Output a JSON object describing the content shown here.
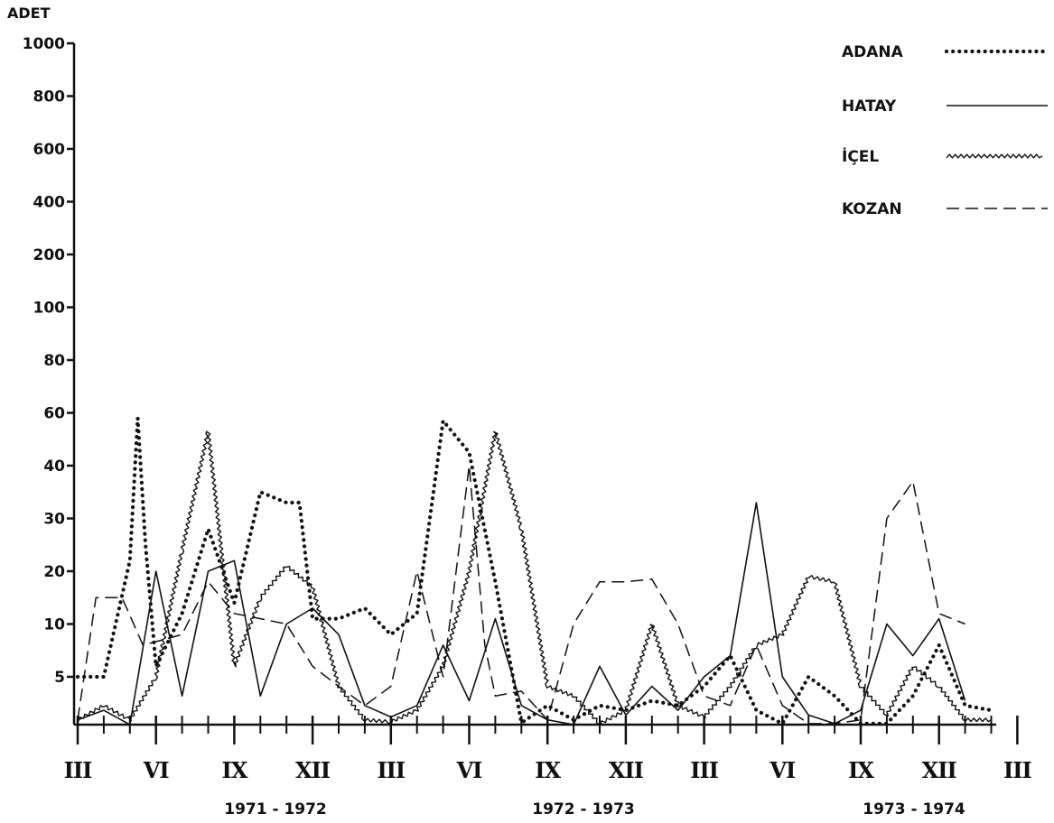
{
  "chart_data": {
    "type": "line",
    "ylabel": "ADET",
    "y_ticks": [
      "1000",
      "800",
      "600",
      "400",
      "200",
      "100",
      "80",
      "60",
      "40",
      "30",
      "20",
      "10",
      "5"
    ],
    "month_labels": [
      "III",
      "VI",
      "IX",
      "XII",
      "III",
      "VI",
      "IX",
      "XII",
      "III",
      "VI",
      "IX",
      "XII",
      "III"
    ],
    "periods": [
      "1971 - 1972",
      "1972 - 1973",
      "1973 - 1974"
    ],
    "x_range_months": [
      0,
      36
    ],
    "series": [
      {
        "name": "ADANA",
        "style": "dotted",
        "points": [
          [
            0,
            5
          ],
          [
            1,
            5
          ],
          [
            2,
            22
          ],
          [
            2.3,
            58
          ],
          [
            2.6,
            25
          ],
          [
            3,
            6
          ],
          [
            4,
            12
          ],
          [
            5,
            28
          ],
          [
            6,
            14
          ],
          [
            7,
            35
          ],
          [
            8,
            33
          ],
          [
            8.5,
            33
          ],
          [
            9,
            11
          ],
          [
            10,
            11
          ],
          [
            11,
            13
          ],
          [
            12,
            9
          ],
          [
            13,
            12
          ],
          [
            14,
            57
          ],
          [
            15,
            45
          ],
          [
            16,
            18
          ],
          [
            17,
            0.2
          ],
          [
            18,
            2
          ],
          [
            19,
            0.5
          ],
          [
            20,
            2
          ],
          [
            21,
            1.5
          ],
          [
            22,
            2.5
          ],
          [
            23,
            2
          ],
          [
            24,
            4
          ],
          [
            25,
            7
          ],
          [
            26,
            1.5
          ],
          [
            27,
            0.1
          ],
          [
            28,
            5
          ],
          [
            29,
            3
          ],
          [
            30,
            0.1
          ],
          [
            31,
            0.1
          ],
          [
            32,
            3
          ],
          [
            33,
            8
          ],
          [
            34,
            2
          ],
          [
            35,
            1.5
          ]
        ]
      },
      {
        "name": "HATAY",
        "style": "solid",
        "points": [
          [
            0,
            0.5
          ],
          [
            1,
            1.5
          ],
          [
            2,
            0
          ],
          [
            3,
            20
          ],
          [
            4,
            3
          ],
          [
            5,
            20
          ],
          [
            6,
            22
          ],
          [
            7,
            3
          ],
          [
            8,
            10
          ],
          [
            9,
            13
          ],
          [
            10,
            9
          ],
          [
            11,
            2
          ],
          [
            12,
            0.8
          ],
          [
            13,
            2
          ],
          [
            14,
            8
          ],
          [
            15,
            2.5
          ],
          [
            16,
            11
          ],
          [
            17,
            2
          ],
          [
            18,
            0.5
          ],
          [
            19,
            0
          ],
          [
            20,
            6
          ],
          [
            21,
            1
          ],
          [
            22,
            4
          ],
          [
            23,
            1.5
          ],
          [
            24,
            5
          ],
          [
            25,
            7
          ],
          [
            26,
            33
          ],
          [
            27,
            5
          ],
          [
            28,
            1
          ],
          [
            29,
            0.1
          ],
          [
            30,
            1.5
          ],
          [
            31,
            10
          ],
          [
            32,
            7
          ],
          [
            33,
            11
          ],
          [
            34,
            2.5
          ]
        ]
      },
      {
        "name": "İÇEL",
        "style": "wavy",
        "points": [
          [
            0,
            0.5
          ],
          [
            1,
            2
          ],
          [
            2,
            0.5
          ],
          [
            3,
            5
          ],
          [
            4,
            24
          ],
          [
            5,
            53
          ],
          [
            6,
            6
          ],
          [
            7,
            15
          ],
          [
            8,
            21
          ],
          [
            9,
            17
          ],
          [
            10,
            4
          ],
          [
            11,
            0.5
          ],
          [
            12,
            0.3
          ],
          [
            13,
            1.5
          ],
          [
            14,
            6
          ],
          [
            15,
            20
          ],
          [
            16,
            53
          ],
          [
            17,
            28
          ],
          [
            18,
            4
          ],
          [
            19,
            3
          ],
          [
            20,
            0.1
          ],
          [
            21,
            1.5
          ],
          [
            22,
            10
          ],
          [
            23,
            2
          ],
          [
            24,
            0.8
          ],
          [
            25,
            4
          ],
          [
            26,
            8
          ],
          [
            27,
            9
          ],
          [
            28,
            19
          ],
          [
            29,
            18
          ],
          [
            30,
            4
          ],
          [
            31,
            1
          ],
          [
            32,
            6
          ],
          [
            33,
            4
          ],
          [
            34,
            0.5
          ],
          [
            35,
            0.5
          ]
        ]
      },
      {
        "name": "KOZAN",
        "style": "dashed",
        "points": [
          [
            0,
            0.5
          ],
          [
            0.7,
            15
          ],
          [
            1.7,
            15
          ],
          [
            2.5,
            8
          ],
          [
            4,
            9
          ],
          [
            5,
            18
          ],
          [
            6,
            12
          ],
          [
            7,
            11
          ],
          [
            8,
            10
          ],
          [
            9,
            6
          ],
          [
            10,
            4
          ],
          [
            11,
            2
          ],
          [
            12,
            4
          ],
          [
            13,
            20
          ],
          [
            14,
            5
          ],
          [
            15,
            40
          ],
          [
            15.6,
            8
          ],
          [
            16,
            3
          ],
          [
            17,
            3.5
          ],
          [
            18,
            0.5
          ],
          [
            19,
            10
          ],
          [
            20,
            18
          ],
          [
            21,
            18
          ],
          [
            22,
            18.5
          ],
          [
            23,
            10
          ],
          [
            24,
            3
          ],
          [
            25,
            2
          ],
          [
            26,
            8
          ],
          [
            27,
            2
          ],
          [
            28,
            0.1
          ],
          [
            29,
            0.1
          ],
          [
            30,
            0.5
          ],
          [
            31,
            30
          ],
          [
            32,
            37
          ],
          [
            33,
            12
          ],
          [
            34,
            10
          ]
        ]
      }
    ]
  },
  "colors": {
    "ink": "#111111",
    "background": "#ffffff"
  }
}
